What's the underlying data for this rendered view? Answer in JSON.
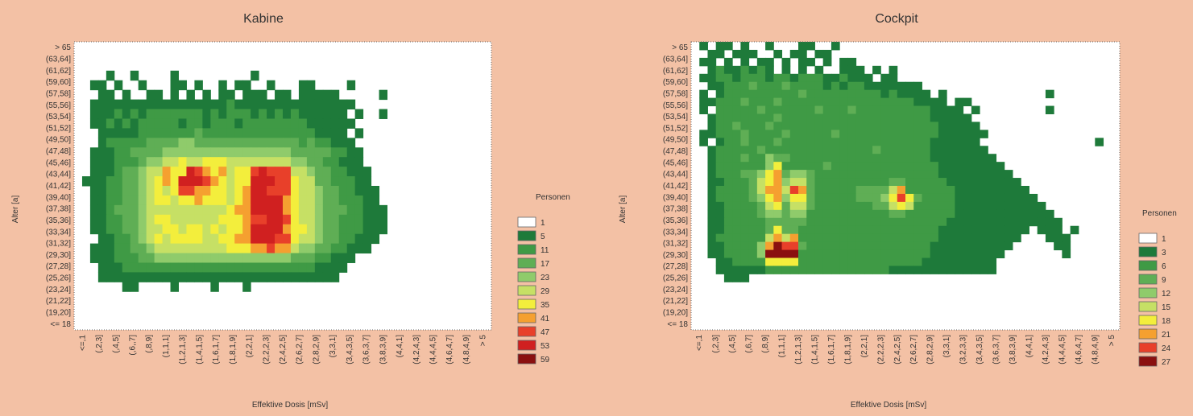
{
  "chart_data": [
    {
      "type": "heatmap",
      "title": "Kabine",
      "xlabel": "Effektive Dosis [mSv]",
      "ylabel": "Alter [a]",
      "x_tick_labels": [
        "<=,1",
        "(,2,3]",
        "(,4,5]",
        "(,6,,7]",
        "(,8,9]",
        "(1,1,1]",
        "(1,2,1,3]",
        "(1,4,1,5]",
        "(1,6,1,7]",
        "(1,8,1,9]",
        "(2,2,1]",
        "(2,2,2,3]",
        "(2,4,2,5]",
        "(2,6,2,7]",
        "(2,8,2,9]",
        "(3,3,1]",
        "(3,4,3,5]",
        "(3,6,3,7]",
        "(3,8,3,9]",
        "(4,4,1]",
        "(4,2,4,3]",
        "(4,4,4,5]",
        "(4,6,4,7]",
        "(4,8,4,9]",
        "> 5"
      ],
      "y_tick_labels": [
        "> 65",
        "(63,64]",
        "(61,62]",
        "(59,60]",
        "(57,58]",
        "(55,56]",
        "(53,54]",
        "(51,52]",
        "(49,50]",
        "(47,48]",
        "(45,46]",
        "(43,44]",
        "(41,42]",
        "(39,40]",
        "(37,38]",
        "(35,36]",
        "(33,34]",
        "(31,32]",
        "(29,30]",
        "(27,28]",
        "(25,26]",
        "(23,24]",
        "(21,22]",
        "(19,20]",
        "<= 18"
      ],
      "legend_title": "Personen",
      "legend_labels": [
        "1",
        "5",
        "11",
        "17",
        "23",
        "29",
        "35",
        "41",
        "47",
        "53",
        "59"
      ],
      "colors": [
        "#ffffff",
        "#1e7a3a",
        "#3f9a45",
        "#5fae55",
        "#8fcb6b",
        "#c6e065",
        "#f3ee3c",
        "#f5a030",
        "#e8402a",
        "#d02020",
        "#8a1010"
      ],
      "grid_cols": 52,
      "grid_rows": 30,
      "values": [
        "0000000000000000000000000000000000000000000000000000",
        "0000000000000000000000000000000000000000000000000000",
        "0000000000000000000000000000000000000000000000000000",
        "0000100100001000000000100000000000000000000000000000",
        "0011010010001101001011001000110000100000000000000000",
        "0001101001101010101101110110111110000010000000000000",
        "0011111111111111111211111111111111100000000000000000",
        "0011121212222222121222121212111111010010000000000000",
        "0011212122222122122212222222211111100000000000000000",
        "0001111122222223222222222222221111010000000000000000",
        "0001222223333443333333333333232211100000000000000000",
        "0011122333344444444444444443333322110000000000000000",
        "0011122234455655666555555554433221110000000000000000",
        "0011123345576698767566898885543322111000000000000000",
        "0111223345676999876566999886553322211000000000000000",
        "0011223345656887766567998886554332211100000000000000",
        "0011223345665667666567999976554332221100000000000000",
        "0011233345555555555677999976554333221110000000000000",
        "0011223345665555556667889986554332221110000000000000",
        "0011223345566566565667999976654332221110000000000000",
        "0001122345656666556677999886554332211100000000000000",
        "0011122334555555555666778775443322111000000000000000",
        "0011122233444444444444444443332211100000000000000000",
        "0001112222222222222222222222221111000000000000000000",
        "0001111111111111111111111111111110000000000000000000",
        "0000001100001000010001000000000000000000000000000000",
        "0000000000000000000000000000000000000000000000000000",
        "0000000000000000000000000000000000000000000000000000",
        "0000000000000000000000000000000000000000000000000000",
        "0000000000000000000000000000000000000000000000000000"
      ]
    },
    {
      "type": "heatmap",
      "title": "Cockpit",
      "xlabel": "Effektive Dosis [mSv]",
      "ylabel": "Alter [a]",
      "x_tick_labels": [
        "<=,1",
        "(,2,3]",
        "(,4,5]",
        "(,6,7]",
        "(,8,9]",
        "(1,1,1]",
        "(1,2,1,3]",
        "(1,4,1,5]",
        "(1,6,1,7]",
        "(1,8,1,9]",
        "(2,2,1]",
        "(2,2,2,3]",
        "(2,4,2,5]",
        "(2,6,2,7]",
        "(2,8,2,9]",
        "(3,3,1]",
        "(3,2,3,3]",
        "(3,4,3,5]",
        "(3,6,3,7]",
        "(3,8,3,9]",
        "(4,4,1]",
        "(4,2,4,3]",
        "(4,4,4,5]",
        "(4,6,4,7]",
        "(4,8,4,9]",
        "> 5"
      ],
      "y_tick_labels": [
        "> 65",
        "(63,64]",
        "(61,62]",
        "(59,60]",
        "(57,58]",
        "(55,56]",
        "(53,54]",
        "(51,52]",
        "(49,50]",
        "(47,48]",
        "(45,46]",
        "(43,44]",
        "(41,42]",
        "(39,40]",
        "(37,38]",
        "(35,36]",
        "(33,34]",
        "(31,32]",
        "(29,30]",
        "(27,28]",
        "(25,26]",
        "(23,24]",
        "(21,22]",
        "(19,20]",
        "<= 18"
      ],
      "legend_title": "Personen",
      "legend_labels": [
        "1",
        "3",
        "6",
        "9",
        "12",
        "15",
        "18",
        "21",
        "24",
        "27"
      ],
      "colors": [
        "#ffffff",
        "#1e7a3a",
        "#3f9a45",
        "#5fae55",
        "#8fcb6b",
        "#c6e065",
        "#f3ee3c",
        "#f5a030",
        "#e8402a",
        "#8a1010"
      ],
      "grid_cols": 52,
      "grid_rows": 36,
      "values": [
        "0101101001000110010000000000000000000000000000000000",
        "0011011100101101100000000000000000000000000000000000",
        "0110101011010110101100000000000000000000000000000000",
        "0012112121010101001110101000000000000000000000000000",
        "0112212221221222112111011000000000000000000000000000",
        "0011222322232222121221111111000000000000000000000000",
        "0101222222222322222222212111101000000000000100000000",
        "0112223222322222222222222221111011000000000000000000",
        "0102222232222223222322222222211110100000000100000000",
        "0012222222322222222222222222211111000000000000000000",
        "0012232223222222222222222222221111100000000000000000",
        "0112223222232222232222222222221111110000000000000000",
        "0101223222322222222222222222211111100000000000000100",
        "0012222232222222222222322222211111110000000000000000",
        "0012223224332222222222222222211111111000000000000000",
        "0012222224622222322222222222221111111100000000000000",
        "0012223346734432222222222222221111111110000000000000",
        "0011222356745532222222223322222111111111000000000000",
        "0012222357758732222233335722222211111111100000000000",
        "0012222346746632222233346863222211111111110000000000",
        "0011222235635532222222335652222211111111111000000000",
        "0011222234434422222222223322222211111111111100000000",
        "0011222223333322222222222222222111111111111110000000",
        "0011222223633222222222222222221111111111101110100000",
        "0012222225757222222222222222221111111111000111000000",
        "0011222247988322222222222222211111111110000011000000",
        "0011222249999222222222222222211111111100000001000000",
        "0001122226666222222222222222111111111000000000000000",
        "0001111112222222222222221111111111111000000000000000",
        "0000111000000000000000000000000000000000000000000000",
        "0000000000000000000000000000000000000000000000000000",
        "0000000000000000000000000000000000000000000000000000",
        "0000000000000000000000000000000000000000000000000000",
        "0000000000000000000000000000000000000000000000000000",
        "0000000000000000000000000000000000000000000000000000",
        "0000000000000000000000000000000000000000000000000000"
      ]
    }
  ]
}
